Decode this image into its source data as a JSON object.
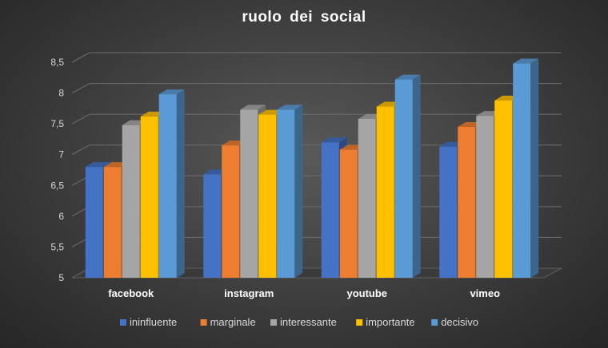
{
  "chart_data": {
    "type": "bar",
    "title": "ruolo  dei social",
    "categories": [
      "facebook",
      "instagram",
      "youtube",
      "vimeo"
    ],
    "series": [
      {
        "name": "ininfluente",
        "color": "#4472c4",
        "values": [
          6.8,
          6.68,
          7.2,
          7.13
        ]
      },
      {
        "name": "marginale",
        "color": "#ed7d31",
        "values": [
          6.8,
          7.15,
          7.08,
          7.45
        ]
      },
      {
        "name": "interessante",
        "color": "#a5a5a5",
        "values": [
          7.48,
          7.73,
          7.58,
          7.63
        ]
      },
      {
        "name": "importante",
        "color": "#ffc000",
        "values": [
          7.62,
          7.65,
          7.78,
          7.88
        ]
      },
      {
        "name": "decisivo",
        "color": "#5b9bd5",
        "values": [
          7.98,
          7.73,
          8.22,
          8.48
        ]
      }
    ],
    "ylim": [
      5,
      8.5
    ],
    "yticks": [
      "5",
      "5,5",
      "6",
      "6,5",
      "7",
      "7,5",
      "8",
      "8,5"
    ],
    "grid": true,
    "legend": "bottom",
    "style": "3d-clustered-column"
  }
}
